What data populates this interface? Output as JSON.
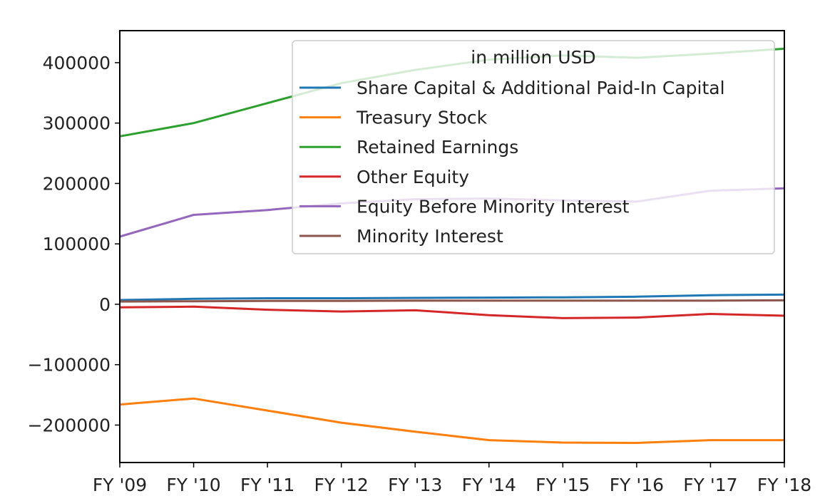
{
  "chart_data": {
    "type": "line",
    "title": "",
    "xlabel": "",
    "ylabel": "",
    "categories": [
      "FY '09",
      "FY '10",
      "FY '11",
      "FY '12",
      "FY '13",
      "FY '14",
      "FY '15",
      "FY '16",
      "FY '17",
      "FY '18"
    ],
    "ylim": [
      -262000,
      453000
    ],
    "yticks": [
      400000,
      300000,
      200000,
      100000,
      0,
      -100000,
      -200000
    ],
    "ytick_labels": [
      "400000",
      "300000",
      "200000",
      "100000",
      "0",
      "−100000",
      "−200000"
    ],
    "grid": false,
    "legend": {
      "title": "in million USD",
      "placement": "upper right"
    },
    "series": [
      {
        "name": "Share Capital & Additional Paid-In Capital",
        "color": "#1f77b4",
        "values": [
          7000,
          9000,
          10000,
          10000,
          10500,
          11000,
          11500,
          12500,
          15000,
          16000
        ]
      },
      {
        "name": "Treasury Stock",
        "color": "#ff7f0e",
        "values": [
          -166000,
          -156000,
          -176000,
          -196000,
          -211000,
          -225000,
          -229000,
          -229500,
          -225000,
          -225000
        ]
      },
      {
        "name": "Retained Earnings",
        "color": "#2ca02c",
        "values": [
          278000,
          300000,
          333000,
          366000,
          388000,
          405000,
          412000,
          408000,
          415000,
          423000
        ]
      },
      {
        "name": "Other Equity",
        "color": "#d62728",
        "values": [
          -5000,
          -4000,
          -9000,
          -12000,
          -10000,
          -18000,
          -23000,
          -22000,
          -16000,
          -19000
        ]
      },
      {
        "name": "Equity Before Minority Interest",
        "color": "#9467bd",
        "values": [
          112000,
          148000,
          156000,
          167000,
          174000,
          175000,
          172000,
          170000,
          188000,
          192000
        ]
      },
      {
        "name": "Minority Interest",
        "color": "#8c564b",
        "values": [
          4500,
          5000,
          5500,
          5500,
          6000,
          6000,
          6000,
          6000,
          6000,
          6500
        ]
      }
    ]
  }
}
